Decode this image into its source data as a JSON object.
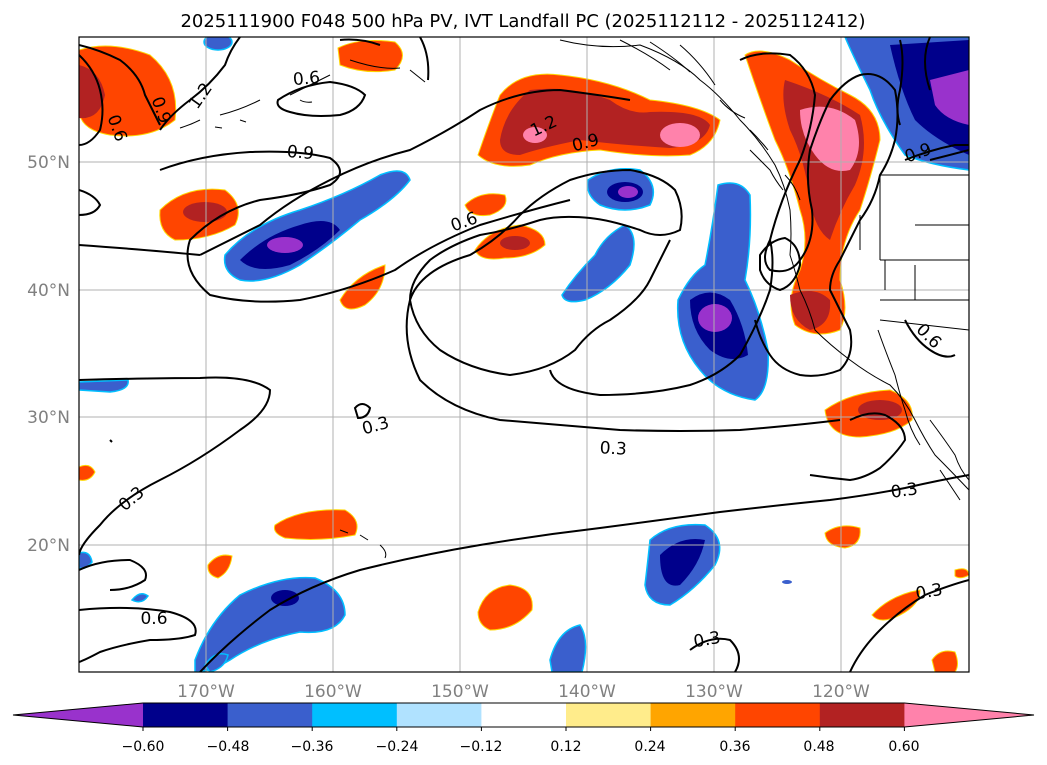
{
  "figure": {
    "title": "2025111900 F048 500 hPa PV, IVT Landfall PC (2025112112 - 2025112412)"
  },
  "map": {
    "lon_labels": [
      "170°W",
      "160°W",
      "150°W",
      "140°W",
      "130°W",
      "120°W"
    ],
    "lat_labels": [
      "50°N",
      "40°N",
      "30°N",
      "20°N"
    ]
  },
  "colorbar": {
    "ticks": [
      "−0.60",
      "−0.48",
      "−0.36",
      "−0.24",
      "−0.12",
      "0.12",
      "0.24",
      "0.36",
      "0.48",
      "0.60"
    ],
    "colors": [
      "#9932cc",
      "#00008b",
      "#3a5fcd",
      "#00bfff",
      "#b0e2ff",
      "#ffffff",
      "#ffec8b",
      "#ffa500",
      "#ff4500",
      "#b22222",
      "#ff82ab"
    ]
  },
  "contour_labels": [
    {
      "id": "clabel-0-6-north",
      "text": "0.6"
    },
    {
      "id": "clabel-1-2-west",
      "text": "1.2"
    },
    {
      "id": "clabel-0-9-west-a",
      "text": "0.9"
    },
    {
      "id": "clabel-0-6-west",
      "text": "0.6"
    },
    {
      "id": "clabel-0-9-mid",
      "text": "0.9"
    },
    {
      "id": "clabel-1-2-east",
      "text": "1.2"
    },
    {
      "id": "clabel-0-9-east",
      "text": "0.9"
    },
    {
      "id": "clabel-0-6-mid",
      "text": "0.6"
    },
    {
      "id": "clabel-0-9-canada",
      "text": "0.9"
    },
    {
      "id": "clabel-0-6-coast",
      "text": "0.6"
    },
    {
      "id": "clabel-0-3-center",
      "text": "0.3"
    },
    {
      "id": "clabel-0-3-west",
      "text": "0.3"
    },
    {
      "id": "clabel-0-3-east",
      "text": "0.3"
    },
    {
      "id": "clabel-0-3-mexico",
      "text": "0.3"
    },
    {
      "id": "clabel-0-6-south",
      "text": "0.6"
    },
    {
      "id": "clabel-0-3-south",
      "text": "0.3"
    }
  ]
}
